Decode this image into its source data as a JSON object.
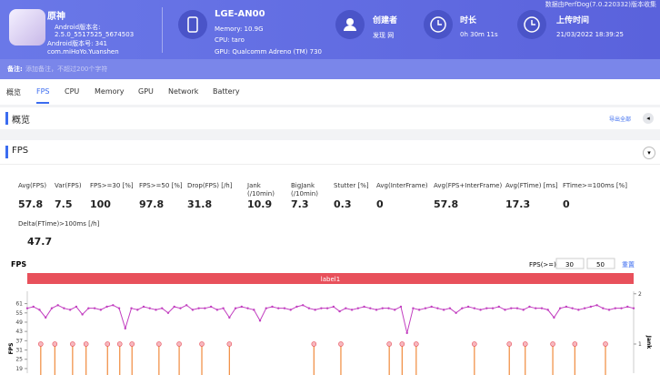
{
  "header": {
    "notice": "数据由PerfDog(7.0.220332)版本收集",
    "app": {
      "name": "原神",
      "version_name_label": "Android版本名:",
      "version_name": "2.5.0_5517525_5674503",
      "version_code": "Android版本号: 341",
      "package": "com.miHoYo.Yuanshen"
    },
    "device": {
      "name": "LGE-AN00",
      "memory": "Memory: 10.9G",
      "cpu": "CPU: taro",
      "gpu": "GPU: Qualcomm Adreno (TM) 730"
    },
    "creator": {
      "label": "创建者",
      "value": "发现 网"
    },
    "duration": {
      "label": "时长",
      "value": "0h 30m 11s"
    },
    "upload": {
      "label": "上传时间",
      "value": "21/03/2022 18:39:25"
    },
    "note": {
      "label": "备注:",
      "placeholder": "添加备注，不超过200个字符"
    }
  },
  "tabs": [
    {
      "label": "概览",
      "active": false
    },
    {
      "label": "FPS",
      "active": true
    },
    {
      "label": "CPU",
      "active": false
    },
    {
      "label": "Memory",
      "active": false
    },
    {
      "label": "GPU",
      "active": false
    },
    {
      "label": "Network",
      "active": false
    },
    {
      "label": "Battery",
      "active": false
    }
  ],
  "overview": {
    "title": "概览",
    "export": "导出全部"
  },
  "fps_section": {
    "title": "FPS",
    "metrics": [
      {
        "label": "Avg(FPS)",
        "value": 57.8
      },
      {
        "label": "Var(FPS)",
        "value": 7.5
      },
      {
        "label": "FPS>=30 [%]",
        "value": 100
      },
      {
        "label": "FPS>=50 [%]",
        "value": 97.8
      },
      {
        "label": "Drop(FPS) [/h]",
        "value": 31.8
      },
      {
        "label": "Jank (/10min)",
        "value": 10.9
      },
      {
        "label": "BigJank (/10min)",
        "value": 7.3
      },
      {
        "label": "Stutter [%]",
        "value": 0.3
      },
      {
        "label": "Avg(InterFrame)",
        "value": 0
      },
      {
        "label": "Avg(FPS+InterFrame)",
        "value": 57.8
      },
      {
        "label": "Avg(FTime) [ms]",
        "value": 17.3
      },
      {
        "label": "FTime>=100ms [%]",
        "value": 0
      },
      {
        "label": "Delta(FTime)>100ms [/h]",
        "value": 47.7
      }
    ]
  },
  "fps_chart": {
    "type": "line",
    "title": "FPS",
    "threshold_label": "FPS(>=)",
    "thresholds": [
      30,
      50
    ],
    "reset": "重置",
    "band_label": "label1",
    "y_label": "FPS",
    "y2_label": "Jank",
    "ylim": [
      16,
      69
    ],
    "yticks": [
      19,
      25,
      31,
      37,
      43,
      49,
      55,
      61
    ],
    "y2lim": [
      0.42,
      2.05
    ],
    "y2ticks": [
      1,
      2
    ],
    "xlim": [
      0,
      99
    ],
    "series": [
      {
        "name": "FPS",
        "color": "#c23fc0",
        "values": [
          58,
          59,
          57,
          52,
          58,
          60,
          58,
          57,
          59,
          54,
          58,
          58,
          57,
          59,
          60,
          58,
          45,
          58,
          57,
          59,
          58,
          57,
          58,
          55,
          59,
          58,
          60,
          57,
          58,
          58,
          59,
          57,
          58,
          52,
          58,
          59,
          58,
          57,
          50,
          58,
          59,
          58,
          58,
          57,
          59,
          60,
          58,
          57,
          58,
          58,
          59,
          56,
          58,
          57,
          58,
          59,
          58,
          57,
          58,
          58,
          57,
          59,
          42,
          58,
          57,
          58,
          59,
          58,
          57,
          58,
          55,
          58,
          59,
          58,
          57,
          58,
          58,
          59,
          57,
          58,
          58,
          57,
          59,
          58,
          58,
          57,
          52,
          58,
          59,
          58,
          57,
          58,
          59,
          60,
          58,
          57,
          58,
          58,
          59,
          58
        ]
      },
      {
        "name": "Jank",
        "color": "#f08a3c",
        "axis": "y2",
        "x": [
          2.2,
          4.5,
          7.4,
          9.6,
          13.1,
          15.1,
          17.1,
          21.5,
          24.8,
          28.5,
          33,
          46.8,
          51.2,
          59.1,
          61.2,
          63.5,
          73,
          78.7,
          81.3,
          85.8,
          89.4,
          94.4
        ],
        "values": [
          1,
          1,
          1,
          1,
          1,
          1,
          1,
          1,
          1,
          1,
          1,
          1,
          1,
          1,
          1,
          1,
          1,
          1,
          1,
          1,
          1,
          1
        ]
      }
    ]
  }
}
